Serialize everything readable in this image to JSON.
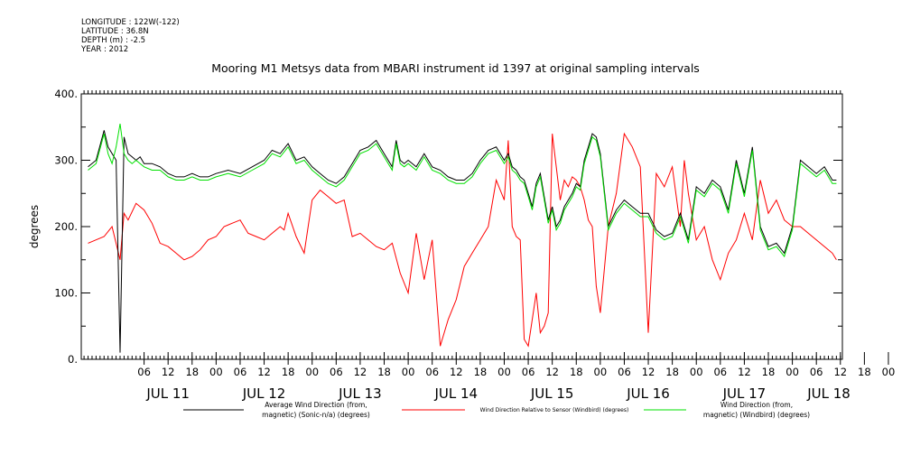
{
  "header": {
    "longitude": "LONGITUDE : 122W(-122)",
    "latitude": "LATITUDE : 36.8N",
    "depth": "DEPTH (m) : -2.5",
    "year": "YEAR : 2012"
  },
  "chart_data": {
    "type": "line",
    "title": "Mooring M1 Metsys data from MBARI instrument id 1397 at original sampling intervals",
    "ylabel": "degrees",
    "xlabel": "",
    "ylim": [
      0,
      400
    ],
    "y_ticks": [
      "0.",
      "100.",
      "200.",
      "300.",
      "400."
    ],
    "x_unit": "hours since JUL 11 00:00",
    "xlim": [
      -9.7,
      180.5
    ],
    "hour_ticks": [
      "06",
      "12",
      "18",
      "00",
      "06",
      "12",
      "18",
      "00",
      "06",
      "12",
      "18",
      "00",
      "06",
      "12",
      "18",
      "00",
      "06",
      "12",
      "18",
      "00",
      "06",
      "12",
      "18",
      "00",
      "06",
      "12",
      "18",
      "00",
      "06",
      "12",
      "18",
      "00"
    ],
    "day_labels": [
      "JUL 11",
      "JUL 12",
      "JUL 13",
      "JUL 14",
      "JUL 15",
      "JUL 16",
      "JUL 17",
      "JUL 18"
    ],
    "series": [
      {
        "name": "Average Wind Direction (from, magnetic) (Sonic-n/a) (degrees)",
        "color": "#000000",
        "x": [
          -8,
          -6,
          -4,
          -3,
          -1,
          0,
          1,
          2,
          3,
          4,
          5,
          6,
          8,
          10,
          12,
          14,
          16,
          18,
          20,
          22,
          24,
          27,
          30,
          33,
          36,
          38,
          40,
          42,
          44,
          46,
          48,
          50,
          52,
          54,
          56,
          58,
          60,
          62,
          64,
          66,
          68,
          69,
          70,
          71,
          72,
          74,
          76,
          78,
          80,
          82,
          84,
          86,
          88,
          90,
          92,
          94,
          96,
          97,
          98,
          99,
          100,
          101,
          102,
          103,
          104,
          105,
          106,
          107,
          108,
          109,
          110,
          111,
          112,
          113,
          114,
          115,
          116,
          117,
          118,
          119,
          120,
          122,
          124,
          126,
          128,
          130,
          132,
          134,
          136,
          138,
          140,
          142,
          144,
          146,
          148,
          150,
          152,
          154,
          156,
          158,
          160,
          162,
          164,
          166,
          168,
          170,
          172,
          174,
          176,
          178,
          179
        ],
        "y": [
          290,
          300,
          345,
          320,
          300,
          10,
          335,
          310,
          305,
          300,
          305,
          295,
          295,
          290,
          280,
          275,
          275,
          280,
          275,
          275,
          280,
          285,
          280,
          290,
          300,
          315,
          310,
          325,
          300,
          305,
          290,
          280,
          270,
          265,
          275,
          295,
          315,
          320,
          330,
          310,
          290,
          330,
          300,
          295,
          300,
          290,
          310,
          290,
          285,
          275,
          270,
          270,
          280,
          300,
          315,
          320,
          300,
          310,
          290,
          285,
          275,
          270,
          250,
          230,
          265,
          280,
          245,
          210,
          230,
          200,
          210,
          230,
          240,
          250,
          265,
          260,
          300,
          320,
          340,
          335,
          310,
          200,
          225,
          240,
          230,
          220,
          220,
          195,
          185,
          190,
          220,
          180,
          260,
          250,
          270,
          260,
          225,
          300,
          250,
          320,
          200,
          170,
          175,
          160,
          200,
          300,
          290,
          280,
          290,
          270,
          270
        ]
      },
      {
        "name": "Wind Direction Relative to Sensor (Windbird) (degrees)",
        "color": "#ff0000",
        "x": [
          -8,
          -6,
          -4,
          -2,
          0,
          1,
          2,
          4,
          6,
          8,
          10,
          12,
          14,
          16,
          18,
          20,
          22,
          24,
          26,
          28,
          30,
          32,
          34,
          36,
          38,
          40,
          41,
          42,
          44,
          46,
          48,
          50,
          52,
          54,
          56,
          58,
          60,
          62,
          64,
          66,
          68,
          70,
          72,
          74,
          76,
          78,
          80,
          82,
          84,
          86,
          88,
          90,
          92,
          94,
          96,
          97,
          98,
          99,
          100,
          101,
          102,
          103,
          104,
          105,
          106,
          107,
          108,
          110,
          111,
          112,
          113,
          114,
          115,
          116,
          117,
          118,
          119,
          120,
          122,
          124,
          126,
          128,
          130,
          132,
          134,
          136,
          138,
          140,
          141,
          142,
          144,
          146,
          148,
          150,
          152,
          154,
          156,
          158,
          160,
          162,
          164,
          166,
          168,
          170,
          172,
          174,
          176,
          178,
          179
        ],
        "y": [
          175,
          180,
          185,
          200,
          150,
          220,
          210,
          235,
          225,
          205,
          175,
          170,
          160,
          150,
          155,
          165,
          180,
          185,
          200,
          205,
          210,
          190,
          185,
          180,
          190,
          200,
          195,
          220,
          185,
          160,
          240,
          255,
          245,
          235,
          240,
          185,
          190,
          180,
          170,
          165,
          175,
          130,
          100,
          190,
          120,
          180,
          20,
          60,
          90,
          140,
          160,
          180,
          200,
          270,
          240,
          330,
          200,
          185,
          180,
          30,
          20,
          60,
          100,
          40,
          50,
          70,
          340,
          240,
          270,
          260,
          275,
          270,
          260,
          240,
          210,
          200,
          110,
          70,
          200,
          250,
          340,
          320,
          290,
          40,
          280,
          260,
          290,
          200,
          300,
          250,
          180,
          200,
          150,
          120,
          160,
          180,
          220,
          180,
          270,
          220,
          240,
          210,
          200,
          200,
          190,
          180,
          170,
          160,
          150
        ]
      },
      {
        "name": "Wind Direction (from, magnetic) (Windbird) (degrees)",
        "color": "#00e000",
        "x": [
          -8,
          -6,
          -4,
          -3,
          -2,
          -1,
          0,
          1,
          2,
          3,
          4,
          5,
          6,
          8,
          10,
          12,
          14,
          16,
          18,
          20,
          22,
          24,
          27,
          30,
          33,
          36,
          38,
          40,
          42,
          44,
          46,
          48,
          50,
          52,
          54,
          56,
          58,
          60,
          62,
          64,
          66,
          68,
          69,
          70,
          71,
          72,
          74,
          76,
          78,
          80,
          82,
          84,
          86,
          88,
          90,
          92,
          94,
          96,
          97,
          98,
          99,
          100,
          101,
          102,
          103,
          104,
          105,
          106,
          107,
          108,
          109,
          110,
          111,
          112,
          113,
          114,
          115,
          116,
          117,
          118,
          119,
          120,
          122,
          124,
          126,
          128,
          130,
          132,
          134,
          136,
          138,
          140,
          142,
          144,
          146,
          148,
          150,
          152,
          154,
          156,
          158,
          160,
          162,
          164,
          166,
          168,
          170,
          172,
          174,
          176,
          178,
          179
        ],
        "y": [
          285,
          295,
          340,
          310,
          295,
          320,
          355,
          310,
          300,
          295,
          300,
          295,
          290,
          285,
          285,
          275,
          270,
          270,
          275,
          270,
          270,
          275,
          280,
          275,
          285,
          295,
          310,
          305,
          320,
          295,
          300,
          285,
          275,
          265,
          260,
          270,
          290,
          310,
          315,
          325,
          305,
          285,
          325,
          295,
          290,
          295,
          285,
          305,
          285,
          280,
          270,
          265,
          265,
          275,
          295,
          310,
          315,
          295,
          305,
          285,
          280,
          270,
          265,
          245,
          225,
          260,
          275,
          240,
          205,
          225,
          195,
          205,
          225,
          235,
          245,
          260,
          255,
          295,
          315,
          335,
          330,
          305,
          195,
          220,
          235,
          225,
          215,
          215,
          190,
          180,
          185,
          215,
          175,
          255,
          245,
          265,
          255,
          220,
          295,
          245,
          315,
          195,
          165,
          170,
          155,
          195,
          295,
          285,
          275,
          285,
          265,
          265
        ]
      }
    ],
    "legend": [
      {
        "label_line1": "Average Wind Direction (from,",
        "label_line2": "magnetic) (Sonic-n/a) (degrees)"
      },
      {
        "label_line1": "Wind Direction Relative to Sensor (Windbird) (degrees)",
        "label_line2": ""
      },
      {
        "label_line1": "Wind Direction (from,",
        "label_line2": "magnetic) (Windbird) (degrees)"
      }
    ],
    "grid": false,
    "legend_position": "bottom"
  }
}
